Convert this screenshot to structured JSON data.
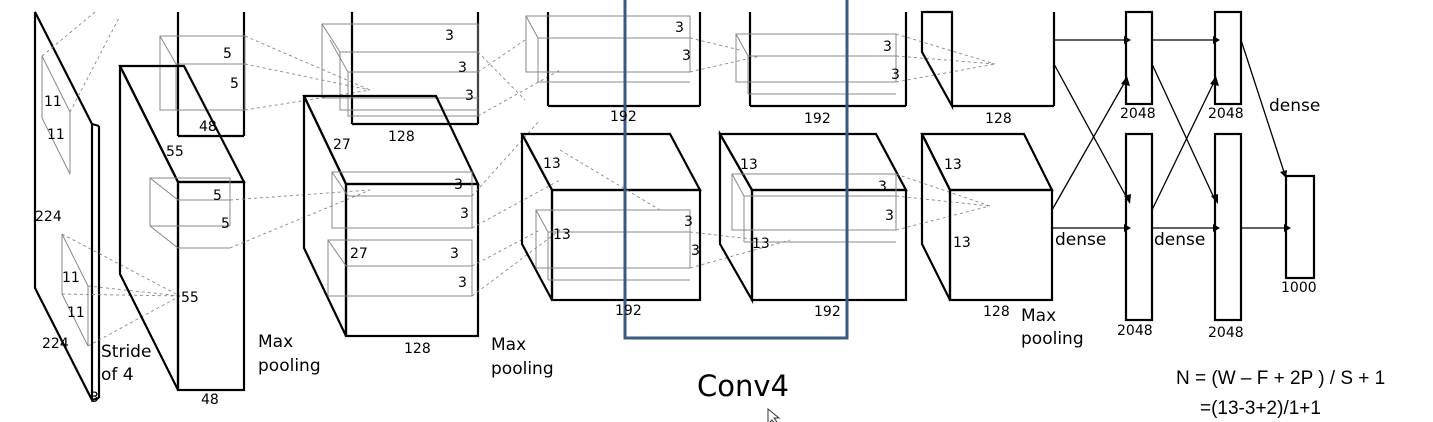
{
  "labels": {
    "input_11a": "11",
    "input_11b": "11",
    "input_11c": "11",
    "input_11d": "11",
    "input_224a": "224",
    "input_224b": "224",
    "input_3": "3",
    "stride": "Stride",
    "of4": "of 4",
    "c1_55a": "55",
    "c1_55b": "55",
    "c1_48top": "48",
    "c1_48bot": "48",
    "c1_5a": "5",
    "c1_5b": "5",
    "c1_5c": "5",
    "c1_5d": "5",
    "maxpool1_a": "Max",
    "maxpool1_b": "pooling",
    "c2_27a": "27",
    "c2_27b": "27",
    "c2_128top": "128",
    "c2_128bot": "128",
    "c2_3a": "3",
    "c2_3b": "3",
    "c2_3c": "3",
    "c2_3d": "3",
    "c2_3e": "3",
    "c2_3f": "3",
    "c2_3g": "3",
    "maxpool2_a": "Max",
    "maxpool2_b": "pooling",
    "c3_192top": "192",
    "c3_192bot": "192",
    "c3_13a": "13",
    "c3_13b": "13",
    "c3_3a": "3",
    "c3_3b": "3",
    "c3_3c": "3",
    "c3_3d": "3",
    "c4_192top": "192",
    "c4_192bot": "192",
    "c4_13a": "13",
    "c4_13b": "13",
    "c4_3a": "3",
    "c4_3b": "3",
    "c4_3c": "3",
    "c4_3d": "3",
    "c5_128top": "128",
    "c5_128bot": "128",
    "c5_13a": "13",
    "c5_13b": "13",
    "maxpool3_a": "Max",
    "maxpool3_b": "pooling",
    "fc1_top": "2048",
    "fc1_bot": "2048",
    "fc2_top": "2048",
    "fc2_bot": "2048",
    "dense1": "dense",
    "dense2": "dense",
    "dense3": "dense",
    "out": "1000"
  },
  "title": "Conv4",
  "formula": {
    "line1": "N = (W – F + 2P ) / S + 1",
    "line2": "=(13-3+2)/1+1"
  }
}
